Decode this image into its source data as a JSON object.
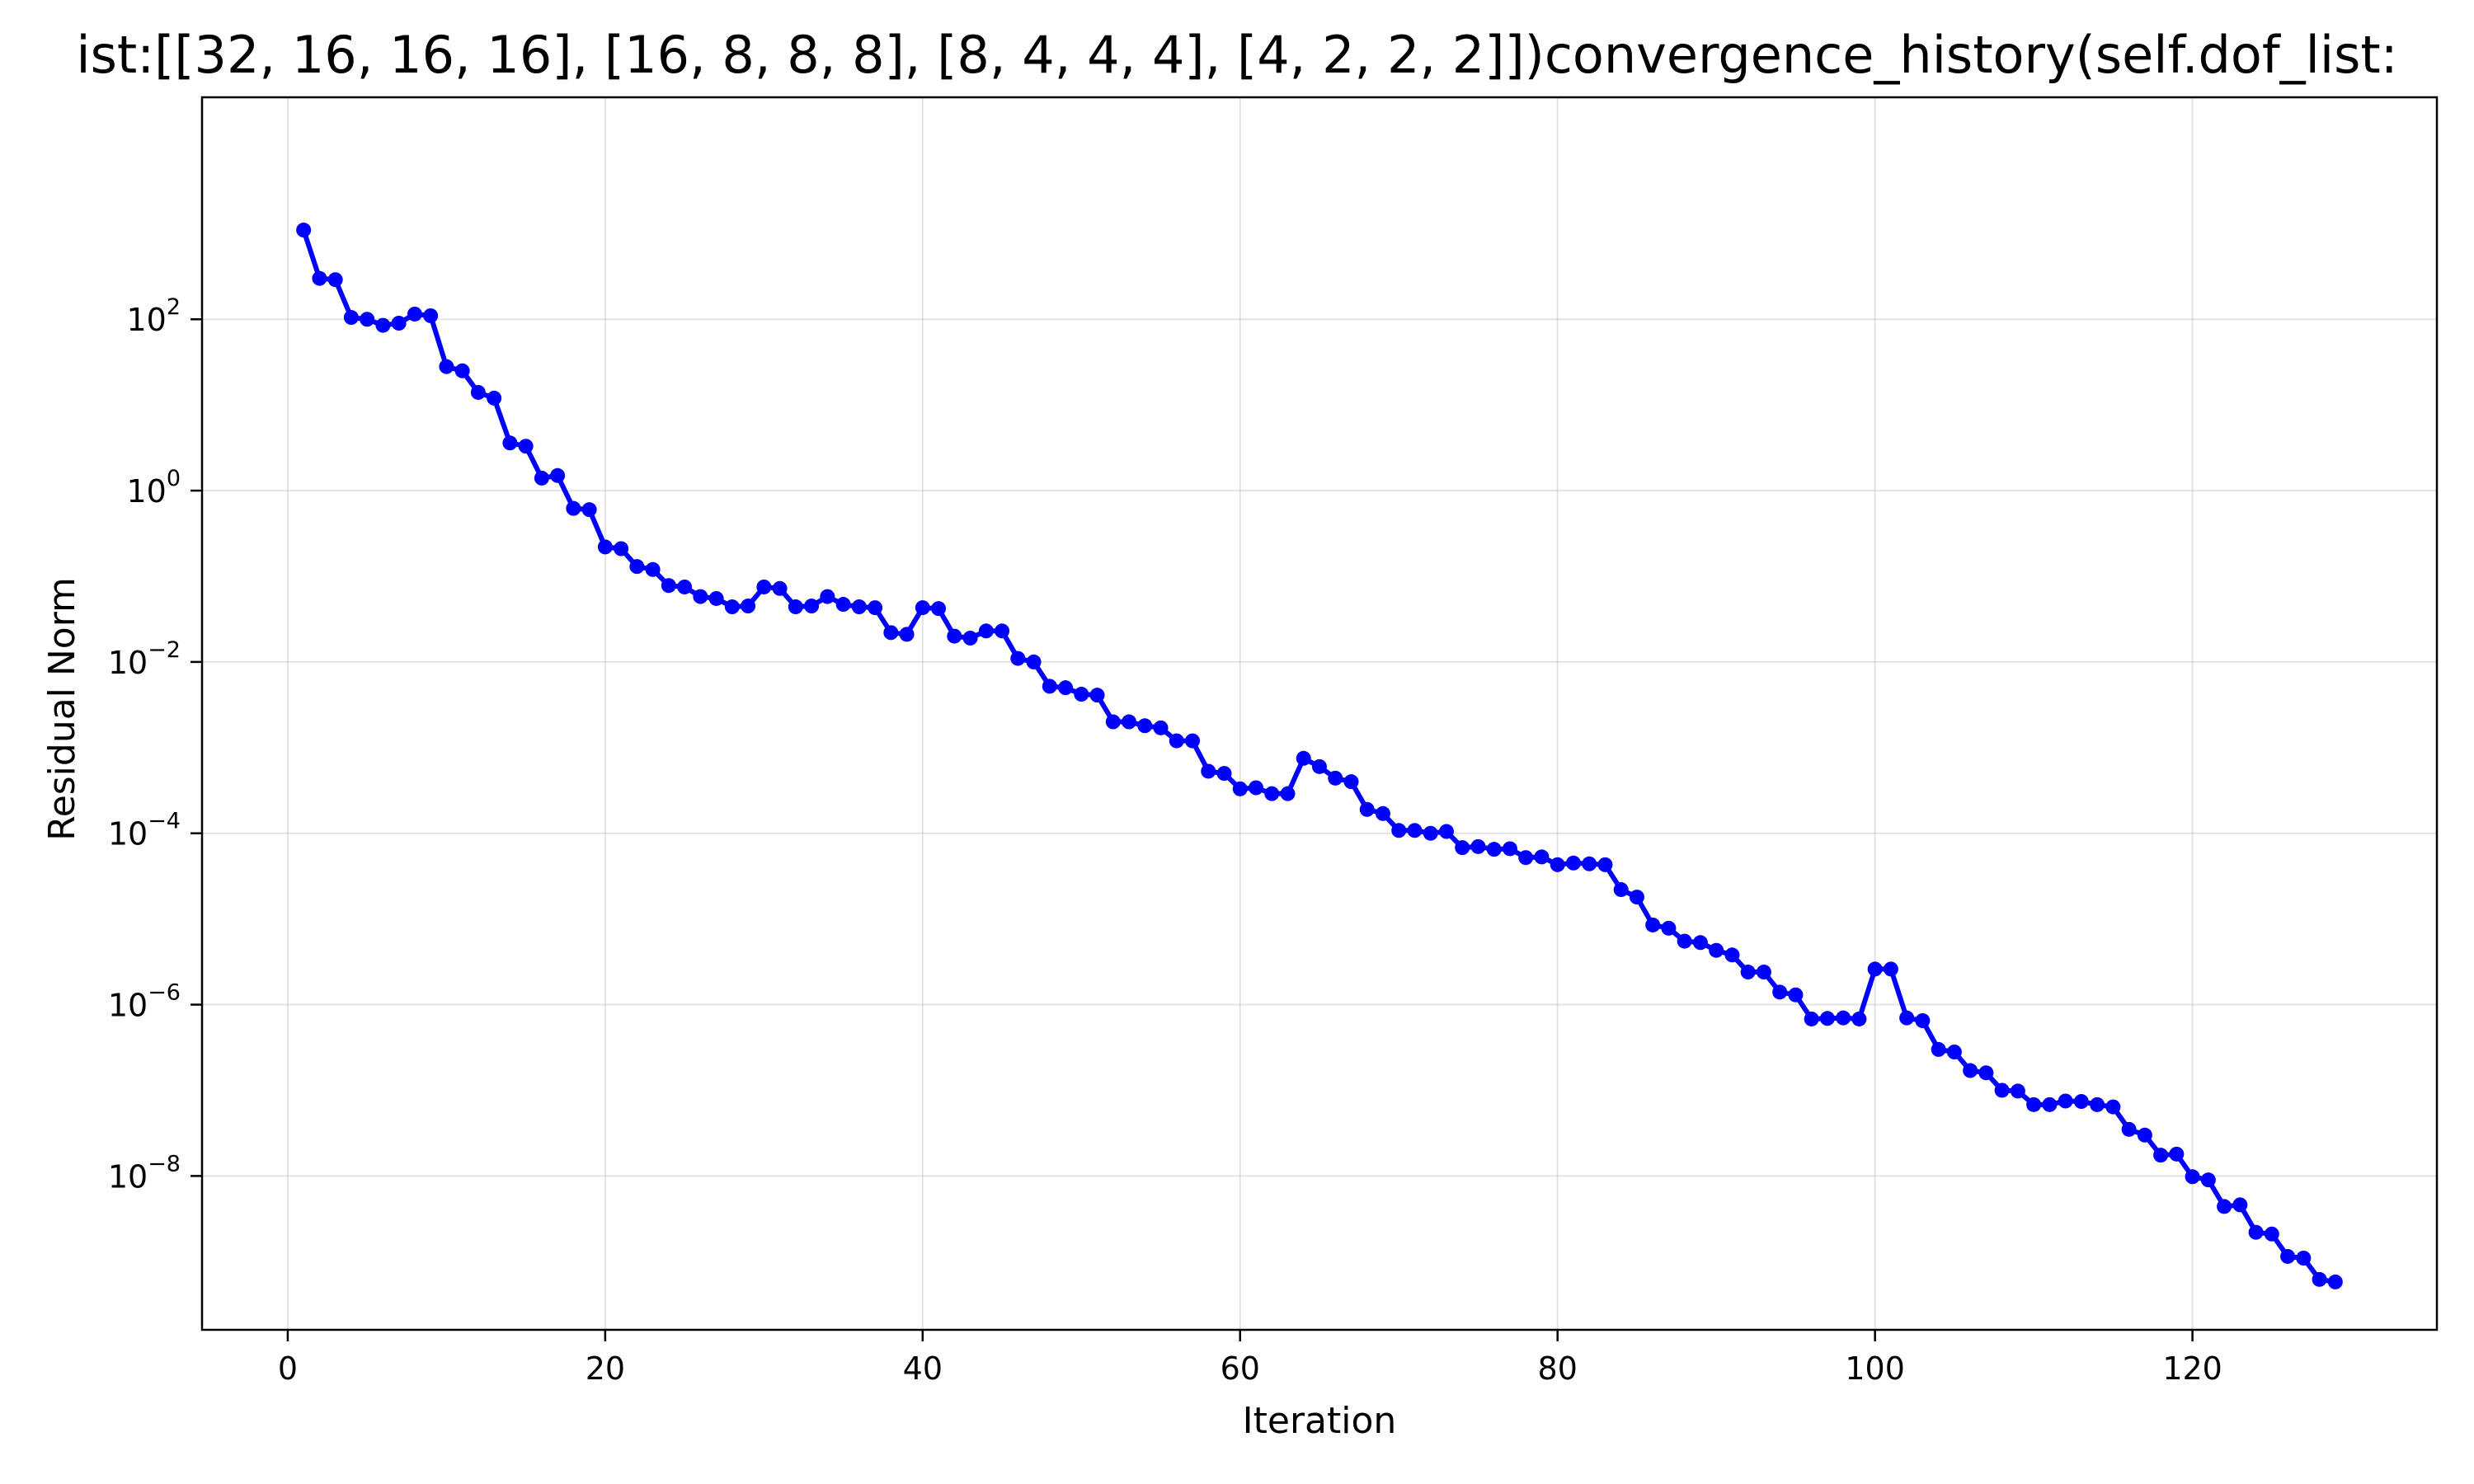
{
  "colors": {
    "series": "#0000ff",
    "background": "#ffffff",
    "axes": "#000000",
    "grid": "#b0b0b0"
  },
  "chart_data": {
    "type": "line",
    "title": "ist:[[32, 16, 16, 16], [16, 8, 8, 8], [8, 4, 4, 4], [4, 2, 2, 2]])convergence_history(self.dof_list:",
    "xlabel": "Iteration",
    "ylabel": "Residual Norm",
    "xscale": "linear",
    "yscale": "log",
    "xlim": [
      -5.4,
      135.4
    ],
    "ylim": [
      1.6e-10,
      39000.0
    ],
    "grid": true,
    "legend": "none",
    "marker": "circle",
    "xticks": [
      {
        "value": 0,
        "label": "0"
      },
      {
        "value": 20,
        "label": "20"
      },
      {
        "value": 40,
        "label": "40"
      },
      {
        "value": 60,
        "label": "60"
      },
      {
        "value": 80,
        "label": "80"
      },
      {
        "value": 100,
        "label": "100"
      },
      {
        "value": 120,
        "label": "120"
      }
    ],
    "yticks": [
      {
        "value": 100,
        "base": "10",
        "exp": "2"
      },
      {
        "value": 1,
        "base": "10",
        "exp": "0"
      },
      {
        "value": 0.01,
        "base": "10",
        "exp": "−2"
      },
      {
        "value": 0.0001,
        "base": "10",
        "exp": "−4"
      },
      {
        "value": 1e-06,
        "base": "10",
        "exp": "−6"
      },
      {
        "value": 1e-08,
        "base": "10",
        "exp": "−8"
      }
    ],
    "series": [
      {
        "color": "#0000ff",
        "x": [
          1,
          2,
          3,
          4,
          5,
          6,
          7,
          8,
          9,
          10,
          11,
          12,
          13,
          14,
          15,
          16,
          17,
          18,
          19,
          20,
          21,
          22,
          23,
          24,
          25,
          26,
          27,
          28,
          29,
          30,
          31,
          32,
          33,
          34,
          35,
          36,
          37,
          38,
          39,
          40,
          41,
          42,
          43,
          44,
          45,
          46,
          47,
          48,
          49,
          50,
          51,
          52,
          53,
          54,
          55,
          56,
          57,
          58,
          59,
          60,
          61,
          62,
          63,
          64,
          65,
          66,
          67,
          68,
          69,
          70,
          71,
          72,
          73,
          74,
          75,
          76,
          77,
          78,
          79,
          80,
          81,
          82,
          83,
          84,
          85,
          86,
          87,
          88,
          89,
          90,
          91,
          92,
          93,
          94,
          95,
          96,
          97,
          98,
          99,
          100,
          101,
          102,
          103,
          104,
          105,
          106,
          107,
          108,
          109,
          110,
          111,
          112,
          113,
          114,
          115,
          116,
          117,
          118,
          119,
          120,
          121,
          122,
          123,
          124,
          125,
          126,
          127,
          128,
          129
        ],
        "y": [
          1100,
          300,
          290,
          105,
          100,
          85,
          90,
          115,
          110,
          28,
          25,
          14,
          12,
          3.6,
          3.3,
          1.4,
          1.5,
          0.62,
          0.6,
          0.22,
          0.21,
          0.13,
          0.12,
          0.078,
          0.075,
          0.058,
          0.055,
          0.044,
          0.045,
          0.075,
          0.072,
          0.044,
          0.045,
          0.058,
          0.047,
          0.044,
          0.043,
          0.022,
          0.021,
          0.043,
          0.042,
          0.02,
          0.019,
          0.023,
          0.023,
          0.011,
          0.01,
          0.0052,
          0.005,
          0.0042,
          0.0041,
          0.002,
          0.002,
          0.0018,
          0.0017,
          0.0012,
          0.0012,
          0.00053,
          0.0005,
          0.00033,
          0.00034,
          0.00029,
          0.00029,
          0.00075,
          0.0006,
          0.00044,
          0.0004,
          0.00019,
          0.00017,
          0.000108,
          0.000108,
          0.0001,
          0.000105,
          6.8e-05,
          7e-05,
          6.5e-05,
          6.6e-05,
          5.2e-05,
          5.3e-05,
          4.3e-05,
          4.5e-05,
          4.4e-05,
          4.3e-05,
          2.2e-05,
          1.8e-05,
          8.5e-06,
          7.8e-06,
          5.5e-06,
          5.3e-06,
          4.3e-06,
          3.8e-06,
          2.4e-06,
          2.4e-06,
          1.4e-06,
          1.3e-06,
          6.8e-07,
          6.9e-07,
          7e-07,
          6.8e-07,
          2.6e-06,
          2.6e-06,
          7e-07,
          6.5e-07,
          3e-07,
          2.8e-07,
          1.7e-07,
          1.6e-07,
          1e-07,
          9.8e-08,
          6.8e-08,
          6.8e-08,
          7.5e-08,
          7.4e-08,
          6.8e-08,
          6.4e-08,
          3.5e-08,
          3e-08,
          1.75e-08,
          1.8e-08,
          9.8e-09,
          9e-09,
          4.4e-09,
          4.6e-09,
          2.2e-09,
          2.1e-09,
          1.15e-09,
          1.1e-09,
          6.2e-10,
          5.8e-10
        ]
      }
    ]
  }
}
